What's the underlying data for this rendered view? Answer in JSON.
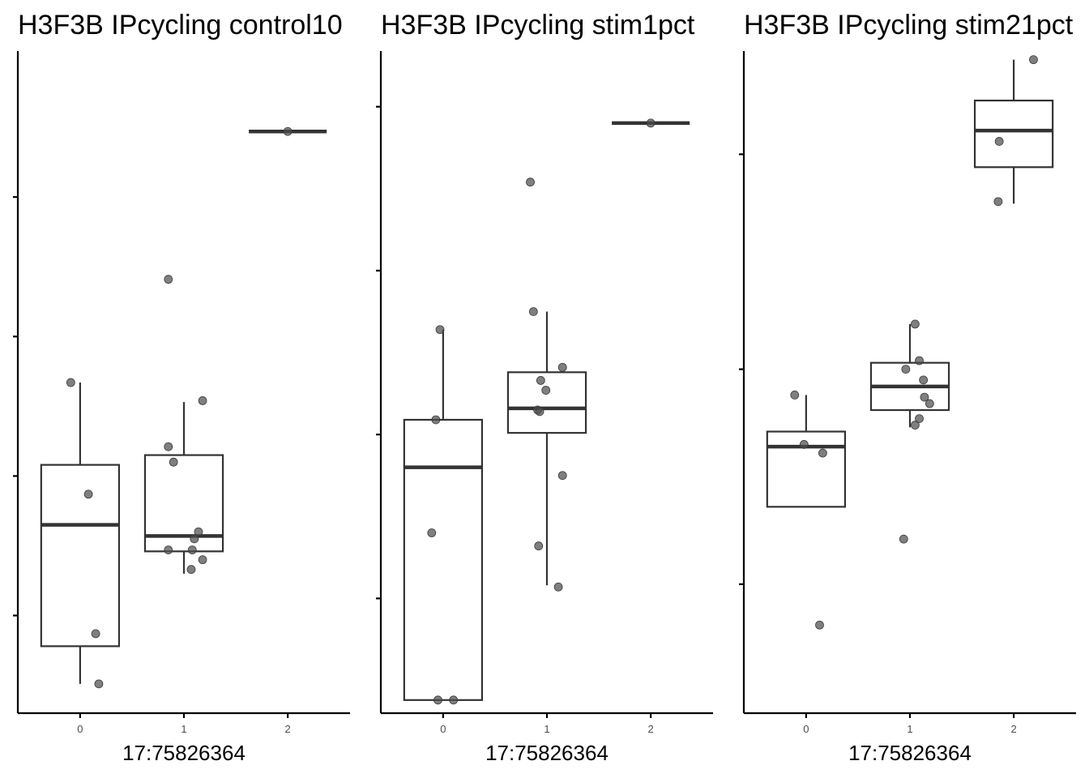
{
  "chart_data": [
    {
      "type": "box",
      "title": "H3F3B IPcycling control10",
      "xlabel": "17:75826364",
      "ylabel": "",
      "categories": [
        "0",
        "1",
        "2"
      ],
      "y_tick_labels_visible": false,
      "ylim": [
        0.3,
        5.0
      ],
      "yticks": [
        1,
        2,
        3,
        4
      ],
      "boxes": [
        {
          "category": "0",
          "lower_whisker": 0.51,
          "q1": 0.78,
          "median": 1.65,
          "q3": 2.08,
          "upper_whisker": 2.67
        },
        {
          "category": "1",
          "lower_whisker": 1.3,
          "q1": 1.46,
          "median": 1.57,
          "q3": 2.15,
          "upper_whisker": 2.53
        },
        {
          "category": "2",
          "lower_whisker": 4.47,
          "q1": 4.47,
          "median": 4.47,
          "q3": 4.47,
          "upper_whisker": 4.47
        }
      ],
      "points": [
        {
          "category": "0",
          "y": [
            2.67,
            1.87,
            0.87,
            0.51
          ]
        },
        {
          "category": "1",
          "y": [
            3.41,
            2.54,
            2.21,
            2.1,
            1.6,
            1.55,
            1.47,
            1.47,
            1.4,
            1.33
          ]
        },
        {
          "category": "2",
          "y": [
            4.47
          ]
        }
      ]
    },
    {
      "type": "box",
      "title": "H3F3B IPcycling stim1pct",
      "xlabel": "17:75826364",
      "ylabel": "",
      "categories": [
        "0",
        "1",
        "2"
      ],
      "y_tick_labels_visible": false,
      "ylim": [
        0.3,
        4.3
      ],
      "yticks": [
        1,
        2,
        3,
        4
      ],
      "boxes": [
        {
          "category": "0",
          "lower_whisker": 0.38,
          "q1": 0.38,
          "median": 1.8,
          "q3": 2.09,
          "upper_whisker": 2.64
        },
        {
          "category": "1",
          "lower_whisker": 1.08,
          "q1": 2.01,
          "median": 2.16,
          "q3": 2.38,
          "upper_whisker": 2.75
        },
        {
          "category": "2",
          "lower_whisker": 3.9,
          "q1": 3.9,
          "median": 3.9,
          "q3": 3.9,
          "upper_whisker": 3.9
        }
      ],
      "points": [
        {
          "category": "0",
          "y": [
            2.64,
            2.09,
            1.4,
            0.38,
            0.38
          ]
        },
        {
          "category": "1",
          "y": [
            3.54,
            2.75,
            2.41,
            2.33,
            2.27,
            2.15,
            2.14,
            1.75,
            1.32,
            1.07
          ]
        },
        {
          "category": "2",
          "y": [
            3.9
          ]
        }
      ]
    },
    {
      "type": "box",
      "title": "H3F3B IPcycling stim21pct",
      "xlabel": "17:75826364",
      "ylabel": "",
      "categories": [
        "0",
        "1",
        "2"
      ],
      "y_tick_labels_visible": false,
      "ylim": [
        0.4,
        3.45
      ],
      "yticks": [
        1,
        2,
        3
      ],
      "boxes": [
        {
          "category": "0",
          "lower_whisker": 1.36,
          "q1": 1.36,
          "median": 1.64,
          "q3": 1.71,
          "upper_whisker": 1.88
        },
        {
          "category": "1",
          "lower_whisker": 1.73,
          "q1": 1.81,
          "median": 1.92,
          "q3": 2.03,
          "upper_whisker": 2.21
        },
        {
          "category": "2",
          "lower_whisker": 2.77,
          "q1": 2.94,
          "median": 3.11,
          "q3": 3.25,
          "upper_whisker": 3.44
        }
      ],
      "points": [
        {
          "category": "0",
          "y": [
            1.88,
            1.65,
            1.61,
            0.81
          ]
        },
        {
          "category": "1",
          "y": [
            2.21,
            2.04,
            2.0,
            1.95,
            1.87,
            1.84,
            1.77,
            1.74,
            1.21
          ]
        },
        {
          "category": "2",
          "y": [
            3.44,
            3.06,
            2.78
          ]
        }
      ]
    }
  ]
}
